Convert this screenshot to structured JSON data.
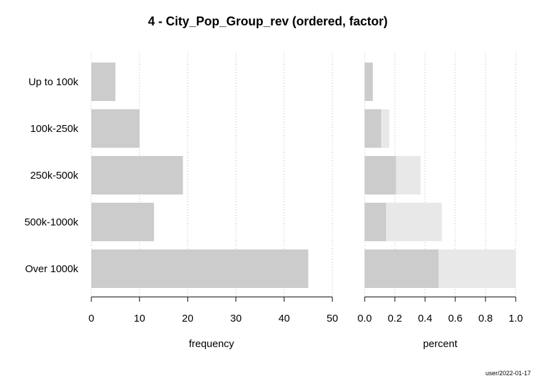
{
  "chart_data": [
    {
      "type": "bar",
      "orientation": "horizontal",
      "title": "4 - City_Pop_Group_rev (ordered, factor)",
      "xlabel": "frequency",
      "ylabel": "",
      "categories": [
        "Up to 100k",
        "100k-250k",
        "250k-500k",
        "500k-1000k",
        "Over 1000k"
      ],
      "values": [
        5,
        10,
        19,
        13,
        45
      ],
      "xlim": [
        0,
        50
      ],
      "xticks": [
        0,
        10,
        20,
        30,
        40,
        50
      ],
      "grid": "vertical dotted",
      "bar_color": "#cccccc"
    },
    {
      "type": "bar",
      "orientation": "horizontal",
      "xlabel": "percent",
      "categories": [
        "Up to 100k",
        "100k-250k",
        "250k-500k",
        "500k-1000k",
        "Over 1000k"
      ],
      "values": [
        0.054,
        0.109,
        0.207,
        0.141,
        0.489
      ],
      "cumulative": [
        0.054,
        0.163,
        0.37,
        0.511,
        1.0
      ],
      "xlim": [
        0,
        1
      ],
      "xticks": [
        0.0,
        0.2,
        0.4,
        0.6,
        0.8,
        1.0
      ],
      "xtick_labels": [
        "0.0",
        "0.2",
        "0.4",
        "0.6",
        "0.8",
        "1.0"
      ],
      "grid": "vertical dotted",
      "bar_color": "#cccccc",
      "cumulative_color": "#e8e8e8"
    }
  ],
  "footer": "user/2022-01-17"
}
